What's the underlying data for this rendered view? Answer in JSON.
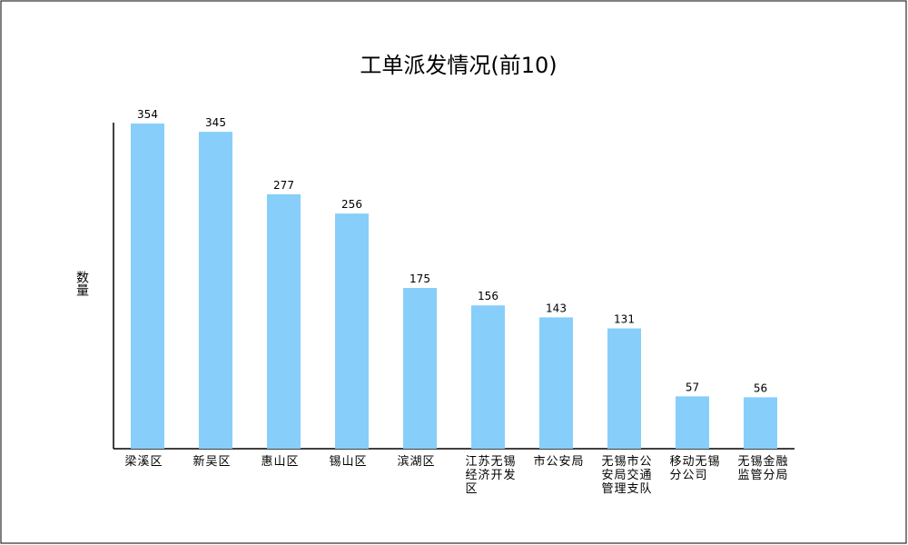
{
  "chart_data": {
    "type": "bar",
    "title": "工单派发情况(前10)",
    "y_label": "数量",
    "categories": [
      "梁溪区",
      "新吴区",
      "惠山区",
      "锡山区",
      "滨湖区",
      "江苏无锡经济开发区",
      "市公安局",
      "无锡市公安局交通管理支队",
      "移动无锡分公司",
      "无锡金融监管分局"
    ],
    "values": [
      354,
      345,
      277,
      256,
      175,
      156,
      143,
      131,
      57,
      56
    ],
    "color": "#87cefa",
    "ylim": [
      0,
      355
    ]
  }
}
